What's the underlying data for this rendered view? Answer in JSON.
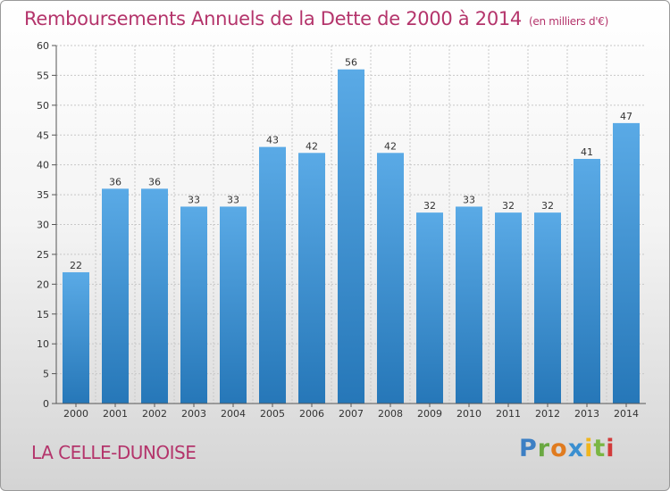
{
  "chart_data": {
    "type": "bar",
    "title": "Remboursements Annuels de la Dette de 2000 à 2014",
    "subtitle": "(en milliers d'€)",
    "categories": [
      "2000",
      "2001",
      "2002",
      "2003",
      "2004",
      "2005",
      "2006",
      "2007",
      "2008",
      "2009",
      "2010",
      "2011",
      "2012",
      "2013",
      "2014"
    ],
    "values": [
      22,
      36,
      36,
      33,
      33,
      43,
      42,
      56,
      42,
      32,
      33,
      32,
      32,
      41,
      47
    ],
    "ylim": [
      0,
      60
    ],
    "yticks": [
      0,
      5,
      10,
      15,
      20,
      25,
      30,
      35,
      40,
      45,
      50,
      55,
      60
    ],
    "grid": true,
    "colors": {
      "bar_top": "#5aaae6",
      "bar_bottom": "#2677b8",
      "grid": "#c8c8c8",
      "axis": "#555555"
    }
  },
  "footer": {
    "place": "LA CELLE-DUNOISE",
    "logo": {
      "p": "P",
      "r": "r",
      "o": "o",
      "x": "x",
      "i1": "i",
      "t": "t",
      "i2": "i"
    }
  }
}
